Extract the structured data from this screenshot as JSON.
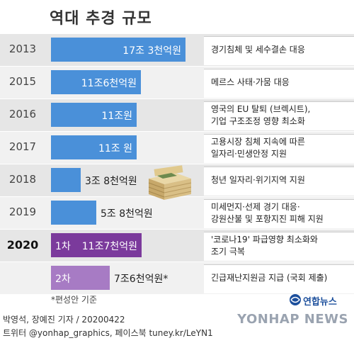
{
  "title": "역대 추경 규모",
  "chart_data": {
    "type": "bar",
    "unit": "억원",
    "categories": [
      "2013",
      "2015",
      "2016",
      "2017",
      "2018",
      "2019",
      "2020 1차",
      "2020 2차"
    ],
    "values": [
      173000,
      116000,
      110000,
      110000,
      38000,
      58000,
      117000,
      76000
    ],
    "xlim": [
      0,
      173000
    ]
  },
  "rows": [
    {
      "year": "2013",
      "label": "17조 3천억원",
      "value": 173000,
      "note": [
        "경기침체 및 세수결손 대응"
      ],
      "color": "#4a90d9"
    },
    {
      "year": "2015",
      "label": "11조6천억원",
      "value": 116000,
      "note": [
        "메르스 사태·가뭄 대응"
      ],
      "color": "#4a90d9"
    },
    {
      "year": "2016",
      "label": "11조원",
      "value": 110000,
      "note": [
        "영국의 EU 탈퇴 (브렉시트),",
        "기업 구조조정 영향 최소화"
      ],
      "color": "#4a90d9"
    },
    {
      "year": "2017",
      "label": "11조 원",
      "value": 110000,
      "note": [
        "고용시장 침체 지속에 따른",
        "일자리·민생안정 지원"
      ],
      "color": "#4a90d9"
    },
    {
      "year": "2018",
      "label": "3조 8천억원",
      "value": 38000,
      "note": [
        "청년 일자리·위기지역 지원"
      ],
      "color": "#4a90d9"
    },
    {
      "year": "2019",
      "label": "5조 8천억원",
      "value": 58000,
      "note": [
        "미세먼지·선제 경기 대응·",
        "강원산불 및 포항지진 피해 지원"
      ],
      "color": "#4a90d9"
    },
    {
      "year": "2020",
      "badge": "1차",
      "label": "11조7천억원",
      "value": 117000,
      "note": [
        "'코로나19' 파급영향 최소화와",
        "조기 극복"
      ],
      "color": "#7b3a9c"
    },
    {
      "year": "",
      "badge": "2차",
      "label": "7조6천억원*",
      "value": 76000,
      "note": [
        "긴급재난지원금 지급 (국회 제출)"
      ],
      "color": "#a77bc4"
    }
  ],
  "footnote": "*편성안 기준",
  "credit_line1": "박영석, 장예진 기자 / 20200422",
  "credit_line2": "트위터 @yonhap_graphics, 페이스북 tuney.kr/LeYN1",
  "logo_small": "연합뉴스",
  "logo_big": "YONHAP NEWS"
}
